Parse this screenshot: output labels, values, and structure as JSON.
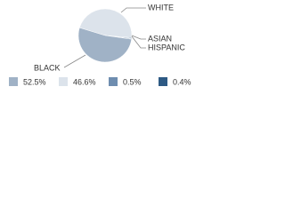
{
  "chart_data": {
    "type": "pie",
    "categories": [
      "BLACK",
      "WHITE",
      "ASIAN",
      "HISPANIC"
    ],
    "values": [
      52.5,
      46.6,
      0.5,
      0.4
    ],
    "value_labels": [
      "52.5%",
      "46.6%",
      "0.5%",
      "0.4%"
    ],
    "colors": [
      "#a0b2c6",
      "#dce3eb",
      "#6e8daf",
      "#2e5a84"
    ]
  }
}
